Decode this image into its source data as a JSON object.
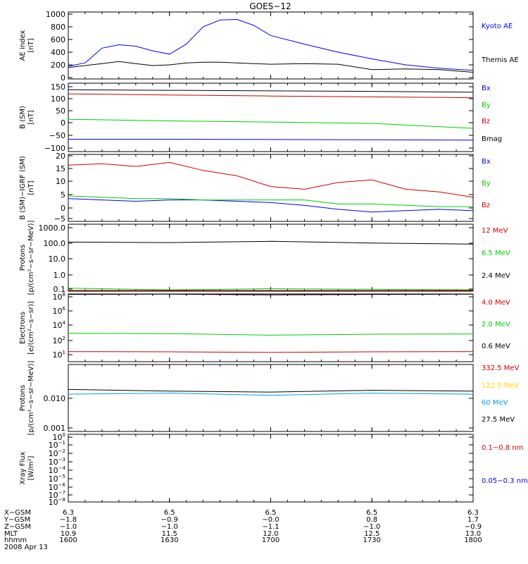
{
  "title": "GOES−12",
  "colors": {
    "black": "#000000",
    "blue": "#0000ff",
    "red": "#cc0000",
    "green": "#00cc00",
    "cyan": "#00a0e0",
    "yellow": "#ffd700"
  },
  "panels": [
    {
      "ylabel": [
        "AE index",
        "[nT]"
      ],
      "ticks": [
        "1000",
        "800",
        "600",
        "400",
        "200",
        "0"
      ],
      "legend": [
        {
          "text": "Kyoto AE",
          "color": "blue"
        },
        {
          "text": "Themis AE",
          "color": "black"
        }
      ]
    },
    {
      "ylabel": [
        "B (SM)",
        "[nT]"
      ],
      "ticks": [
        "150",
        "100",
        "50",
        "0",
        "−50",
        "−100"
      ],
      "legend": [
        {
          "text": "Bx",
          "color": "blue"
        },
        {
          "text": "By",
          "color": "green"
        },
        {
          "text": "Bz",
          "color": "red"
        },
        {
          "text": "Bmag",
          "color": "black"
        }
      ]
    },
    {
      "ylabel": [
        "B (SM)−IGRF (SM)",
        "[nT]"
      ],
      "ticks": [
        "20",
        "15",
        "10",
        "5",
        "0",
        "−5"
      ],
      "legend": [
        {
          "text": "Bx",
          "color": "blue"
        },
        {
          "text": "By",
          "color": "green"
        },
        {
          "text": "Bz",
          "color": "red"
        }
      ]
    },
    {
      "ylabel": [
        "Protons",
        "[p/(cm²−s−sr−MeV)]"
      ],
      "ticks": [
        "1000.0",
        "100.0",
        "10.0",
        "1.0",
        "0.1"
      ],
      "legend": [
        {
          "text": "12 MeV",
          "color": "red"
        },
        {
          "text": "6.5 MeV",
          "color": "green"
        },
        {
          "text": "2.4 MeV",
          "color": "black"
        }
      ]
    },
    {
      "ylabel": [
        "Electrons",
        "[e/(cm²−s−sr)]"
      ],
      "ticks": [
        "10",
        "10",
        "10",
        "10",
        "10"
      ],
      "tick_exps": [
        "8",
        "6",
        "4",
        "2",
        "1"
      ],
      "legend": [
        {
          "text": "4.0 MeV",
          "color": "red"
        },
        {
          "text": "2.0 MeV",
          "color": "green"
        },
        {
          "text": "0.6 MeV",
          "color": "black"
        }
      ]
    },
    {
      "ylabel": [
        "Protons",
        "[p/(cm²−s−sr−MeV)]"
      ],
      "ticks": [
        "0.010",
        "0.001"
      ],
      "legend": [
        {
          "text": "332.5 MeV",
          "color": "red"
        },
        {
          "text": "122.5 MeV",
          "color": "yellow"
        },
        {
          "text": "60 MeV",
          "color": "cyan"
        },
        {
          "text": "27.5 MeV",
          "color": "black"
        }
      ]
    },
    {
      "ylabel": [
        "Xray Flux",
        "[W/m²]"
      ],
      "ticks": [
        "10",
        "10",
        "10",
        "10",
        "10",
        "10",
        "10",
        "10",
        "10"
      ],
      "tick_exps": [
        "0",
        "−1",
        "−2",
        "−3",
        "−4",
        "−5",
        "−6",
        "−7",
        "−8"
      ],
      "legend": [
        {
          "text": "0.1−0.8 nm",
          "color": "red"
        },
        {
          "text": "0.05−0.3 nm",
          "color": "blue"
        }
      ]
    }
  ],
  "orbit_table": {
    "row_labels": [
      "X−GSM",
      "Y−GSM",
      "Z−GSM",
      "MLT",
      "hhmm"
    ],
    "columns": [
      [
        "6.3",
        "−1.8",
        "−1.0",
        "10.9",
        "1600"
      ],
      [
        "6.5",
        "−0.9",
        "−1.0",
        "11.5",
        "1630"
      ],
      [
        "6.5",
        "−0.0",
        "−1.1",
        "12.0",
        "1700"
      ],
      [
        "6.5",
        "0.8",
        "−1.0",
        "12.5",
        "1730"
      ],
      [
        "6.3",
        "1.7",
        "−0.9",
        "13.0",
        "1800"
      ]
    ],
    "date": "2008 Apr 13"
  },
  "chart_data": {
    "type": "line",
    "title": "GOES−12",
    "x_unit": "UT hhmm",
    "xlim": [
      "1600",
      "1800"
    ],
    "x_ticks": [
      "1600",
      "1630",
      "1700",
      "1730",
      "1800"
    ],
    "panels": [
      {
        "ylim": [
          0,
          1000
        ],
        "log": false,
        "x": [
          "1600",
          "1605",
          "1610",
          "1615",
          "1620",
          "1625",
          "1630",
          "1635",
          "1640",
          "1645",
          "1650",
          "1655",
          "1700",
          "1710",
          "1720",
          "1730",
          "1740",
          "1750",
          "1800"
        ],
        "series": [
          {
            "name": "Kyoto AE",
            "color": "blue",
            "values": [
              190,
              240,
              460,
              510,
              490,
              420,
              370,
              520,
              780,
              880,
              890,
              800,
              650,
              520,
              400,
              300,
              210,
              160,
              130
            ]
          },
          {
            "name": "Themis AE",
            "color": "black",
            "values": [
              170,
              200,
              230,
              260,
              230,
              200,
              210,
              240,
              250,
              250,
              240,
              230,
              220,
              230,
              220,
              140,
              150,
              140,
              100
            ]
          }
        ]
      },
      {
        "ylim": [
          -100,
          150
        ],
        "log": false,
        "x": [
          "1600",
          "1630",
          "1700",
          "1730",
          "1800"
        ],
        "series": [
          {
            "name": "Bx",
            "color": "blue",
            "values": [
              -55,
              -55,
              -56,
              -57,
              -58
            ]
          },
          {
            "name": "By",
            "color": "green",
            "values": [
              18,
              12,
              8,
              3,
              -15
            ]
          },
          {
            "name": "Bz",
            "color": "red",
            "values": [
              111,
              107,
              103,
              100,
              97
            ]
          },
          {
            "name": "Bmag",
            "color": "black",
            "values": [
              126,
              124,
              122,
              120,
              117
            ]
          }
        ]
      },
      {
        "ylim": [
          -5,
          20
        ],
        "log": false,
        "x": [
          "1600",
          "1610",
          "1620",
          "1630",
          "1640",
          "1650",
          "1700",
          "1710",
          "1720",
          "1730",
          "1740",
          "1750",
          "1800"
        ],
        "series": [
          {
            "name": "Bx",
            "color": "blue",
            "values": [
              3.5,
              3.0,
              2.5,
              3.0,
              3.0,
              2.5,
              2.0,
              1.0,
              -0.5,
              -1.5,
              -1.0,
              -0.5,
              -1.0
            ]
          },
          {
            "name": "By",
            "color": "green",
            "values": [
              4.5,
              4.0,
              3.5,
              3.5,
              3.0,
              3.0,
              3.0,
              3.0,
              1.5,
              1.5,
              1.0,
              0.5,
              0.5
            ]
          },
          {
            "name": "Bz",
            "color": "red",
            "values": [
              16,
              16.5,
              15.5,
              17,
              14,
              12,
              8,
              7,
              9.5,
              10.5,
              7,
              6,
              4
            ]
          }
        ]
      },
      {
        "ylim": [
          0.1,
          1000
        ],
        "log": true,
        "x": [
          "1600",
          "1630",
          "1700",
          "1730",
          "1800"
        ],
        "series": [
          {
            "name": "2.4 MeV",
            "color": "black",
            "values": [
              85,
              80,
              95,
              75,
              65
            ]
          },
          {
            "name": "6.5 MeV",
            "color": "green",
            "values": [
              0.15,
              0.12,
              0.14,
              0.13,
              0.12
            ]
          },
          {
            "name": "12 MeV",
            "color": "red",
            "values": [
              0.11,
              0.11,
              0.11,
              0.11,
              0.11
            ]
          }
        ]
      },
      {
        "ylim": [
          10,
          100000000
        ],
        "log": true,
        "x": [
          "1600",
          "1630",
          "1700",
          "1730",
          "1800"
        ],
        "series": [
          {
            "name": "0.6 MeV",
            "color": "black",
            "values": [
              90000000,
              95000000,
              80000000,
              90000000,
              95000000
            ]
          },
          {
            "name": "2.0 MeV",
            "color": "green",
            "values": [
              8500,
              8000,
              5500,
              7000,
              7500
            ]
          },
          {
            "name": "4.0 MeV",
            "color": "red",
            "values": [
              110,
              105,
              90,
              105,
              110
            ]
          }
        ]
      },
      {
        "ylim": [
          0.001,
          0.1
        ],
        "log": true,
        "x": [
          "1600",
          "1630",
          "1700",
          "1730",
          "1800"
        ],
        "series": [
          {
            "name": "27.5 MeV",
            "color": "black",
            "values": [
              0.018,
              0.016,
              0.015,
              0.017,
              0.016
            ]
          },
          {
            "name": "60 MeV",
            "color": "cyan",
            "values": [
              0.013,
              0.014,
              0.012,
              0.014,
              0.013
            ]
          }
        ]
      },
      {
        "ylim": [
          1e-08,
          1
        ],
        "log": true,
        "x": [],
        "series": []
      }
    ]
  }
}
